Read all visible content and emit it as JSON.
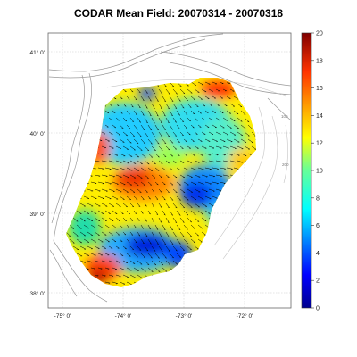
{
  "title": "CODAR Mean Field: 20070314 - 20070318",
  "axes": {
    "x_ticks": [
      "-75° 0'",
      "-74° 0'",
      "-73° 0'",
      "-72° 0'"
    ],
    "y_ticks": [
      "41° 0'",
      "40° 0'",
      "39° 0'",
      "38° 0'"
    ]
  },
  "colorbar": {
    "min": 0,
    "max": 20,
    "ticks": [
      "20",
      "18",
      "16",
      "14",
      "12",
      "10",
      "8",
      "6",
      "4",
      "2",
      "0"
    ]
  },
  "isobaths": [
    "50",
    "50",
    "100",
    "200"
  ],
  "colors": {
    "land_line": "#9a9a9a",
    "arrow": "#000000",
    "grid": "#bdbdbd"
  }
}
